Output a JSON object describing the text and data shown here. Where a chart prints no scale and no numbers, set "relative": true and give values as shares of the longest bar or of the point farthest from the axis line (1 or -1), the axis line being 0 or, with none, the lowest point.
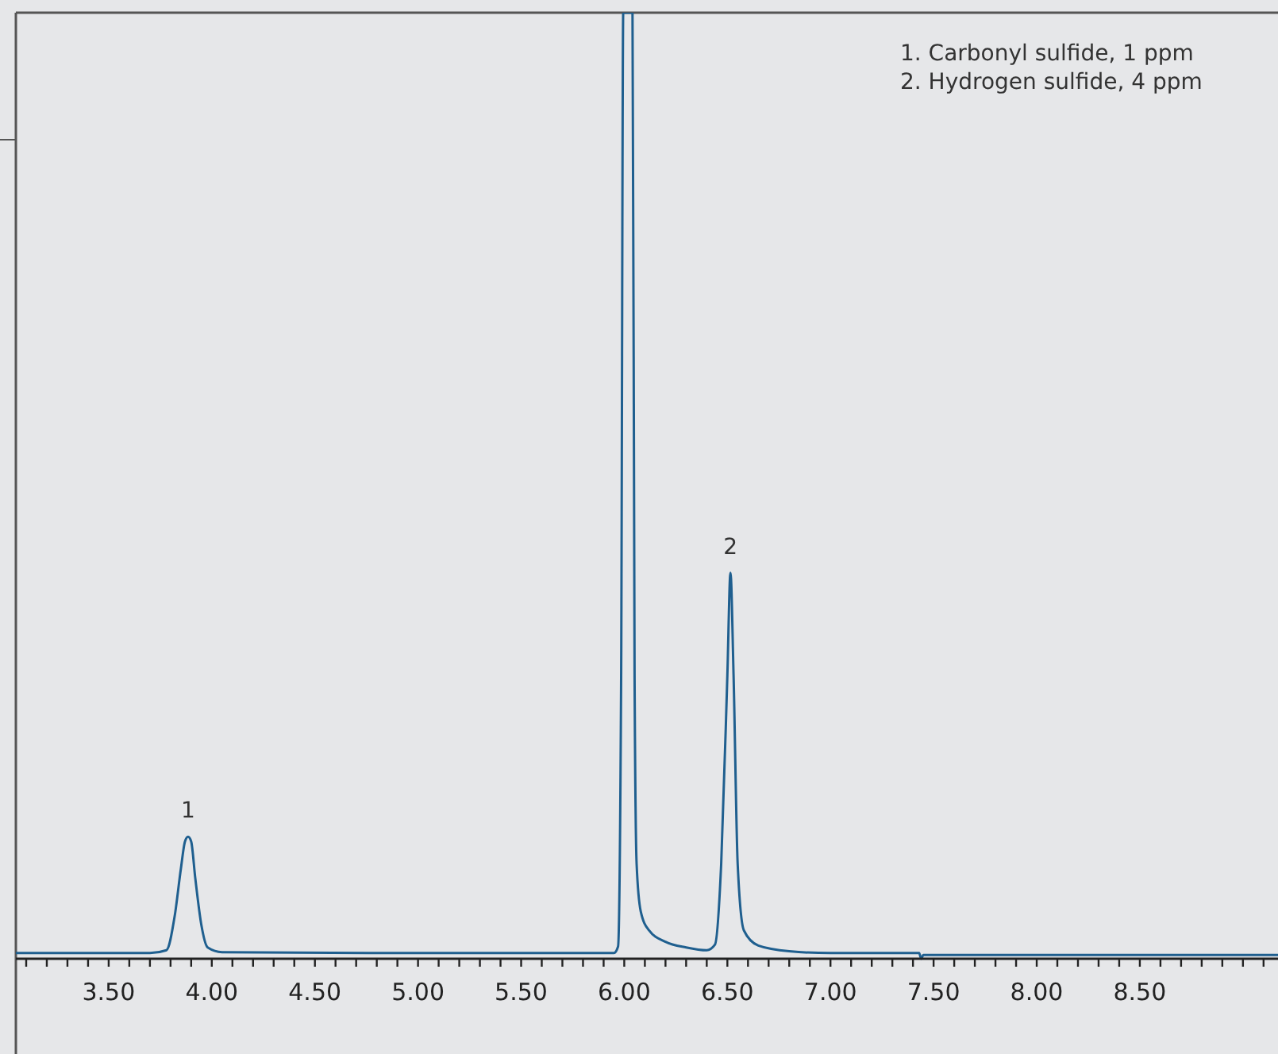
{
  "chart_data": {
    "type": "line",
    "relative": true,
    "xlim": [
      3.05,
      9.17
    ],
    "xticks": [
      {
        "value": 3.1,
        "label": null
      },
      {
        "value": 3.2,
        "label": null
      },
      {
        "value": 3.3,
        "label": null
      },
      {
        "value": 3.4,
        "label": null
      },
      {
        "value": 3.5,
        "label": "3.50"
      },
      {
        "value": 3.6,
        "label": null
      },
      {
        "value": 3.7,
        "label": null
      },
      {
        "value": 3.8,
        "label": null
      },
      {
        "value": 3.9,
        "label": null
      },
      {
        "value": 4.0,
        "label": "4.00"
      },
      {
        "value": 4.1,
        "label": null
      },
      {
        "value": 4.2,
        "label": null
      },
      {
        "value": 4.3,
        "label": null
      },
      {
        "value": 4.4,
        "label": null
      },
      {
        "value": 4.5,
        "label": "4.50"
      },
      {
        "value": 4.6,
        "label": null
      },
      {
        "value": 4.7,
        "label": null
      },
      {
        "value": 4.8,
        "label": null
      },
      {
        "value": 4.9,
        "label": null
      },
      {
        "value": 5.0,
        "label": "5.00"
      },
      {
        "value": 5.1,
        "label": null
      },
      {
        "value": 5.2,
        "label": null
      },
      {
        "value": 5.3,
        "label": null
      },
      {
        "value": 5.4,
        "label": null
      },
      {
        "value": 5.5,
        "label": "5.50"
      },
      {
        "value": 5.6,
        "label": null
      },
      {
        "value": 5.7,
        "label": null
      },
      {
        "value": 5.8,
        "label": null
      },
      {
        "value": 5.9,
        "label": null
      },
      {
        "value": 6.0,
        "label": "6.00"
      },
      {
        "value": 6.1,
        "label": null
      },
      {
        "value": 6.2,
        "label": null
      },
      {
        "value": 6.3,
        "label": null
      },
      {
        "value": 6.4,
        "label": null
      },
      {
        "value": 6.5,
        "label": "6.50"
      },
      {
        "value": 6.6,
        "label": null
      },
      {
        "value": 6.7,
        "label": null
      },
      {
        "value": 6.8,
        "label": null
      },
      {
        "value": 6.9,
        "label": null
      },
      {
        "value": 7.0,
        "label": "7.00"
      },
      {
        "value": 7.1,
        "label": null
      },
      {
        "value": 7.2,
        "label": null
      },
      {
        "value": 7.3,
        "label": null
      },
      {
        "value": 7.4,
        "label": null
      },
      {
        "value": 7.5,
        "label": "7.50"
      },
      {
        "value": 7.6,
        "label": null
      },
      {
        "value": 7.7,
        "label": null
      },
      {
        "value": 7.8,
        "label": null
      },
      {
        "value": 7.9,
        "label": null
      },
      {
        "value": 8.0,
        "label": "8.00"
      },
      {
        "value": 8.1,
        "label": null
      },
      {
        "value": 8.2,
        "label": null
      },
      {
        "value": 8.3,
        "label": null
      },
      {
        "value": 8.4,
        "label": null
      },
      {
        "value": 8.5,
        "label": "8.50"
      },
      {
        "value": 8.6,
        "label": null
      },
      {
        "value": 8.7,
        "label": null
      },
      {
        "value": 8.8,
        "label": null
      },
      {
        "value": 8.9,
        "label": null
      },
      {
        "value": 9.0,
        "label": null
      },
      {
        "value": 9.1,
        "label": null
      }
    ],
    "series": [
      {
        "color": "#1f5f8f",
        "x": [
          3.05,
          3.7,
          3.78,
          3.82,
          3.85,
          3.87,
          3.885,
          3.9,
          3.92,
          3.95,
          3.98,
          4.05,
          5.0,
          5.95,
          5.97,
          5.985,
          5.995,
          6.04,
          6.05,
          6.06,
          6.08,
          6.12,
          6.2,
          6.3,
          6.4,
          6.44,
          6.47,
          6.5,
          6.515,
          6.53,
          6.55,
          6.58,
          6.65,
          6.8,
          7.0,
          7.43,
          7.44,
          7.45,
          8.0,
          9.17
        ],
        "values": [
          0.006,
          0.006,
          0.009,
          0.045,
          0.095,
          0.124,
          0.129,
          0.124,
          0.085,
          0.035,
          0.012,
          0.007,
          0.006,
          0.006,
          0.013,
          0.3,
          1,
          1,
          0.3,
          0.1,
          0.05,
          0.03,
          0.018,
          0.012,
          0.009,
          0.015,
          0.1,
          0.3,
          0.408,
          0.3,
          0.1,
          0.03,
          0.014,
          0.008,
          0.006,
          0.006,
          0.0,
          0.004,
          0.004,
          0.004
        ]
      }
    ],
    "annotations": [
      "1. Carbonyl sulfide, 1 ppm",
      "2. Hydrogen sulfide, 4 ppm",
      {
        "text": "1",
        "x": 3.885,
        "y": 0.129
      },
      {
        "text": "2",
        "x": 6.515,
        "y": 0.408
      }
    ]
  }
}
